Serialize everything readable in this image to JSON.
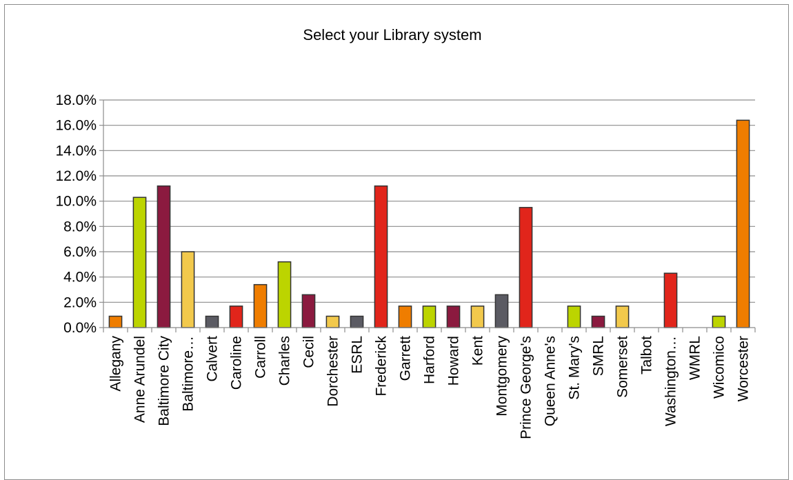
{
  "chart_data": {
    "type": "bar",
    "title": "Select your Library system",
    "xlabel": "",
    "ylabel": "",
    "ylim": [
      0,
      18
    ],
    "y_tick_labels": [
      "0.0%",
      "2.0%",
      "4.0%",
      "6.0%",
      "8.0%",
      "10.0%",
      "12.0%",
      "14.0%",
      "16.0%",
      "18.0%"
    ],
    "grid": true,
    "legend": "none",
    "categories": [
      "Allegany",
      "Anne Arundel",
      "Baltimore City",
      "Baltimore…",
      "Calvert",
      "Caroline",
      "Carroll",
      "Charles",
      "Cecil",
      "Dorchester",
      "ESRL",
      "Frederick",
      "Garrett",
      "Harford",
      "Howard",
      "Kent",
      "Montgomery",
      "Prince George's",
      "Queen Anne's",
      "St. Mary's",
      "SMRL",
      "Somerset",
      "Talbot",
      "Washington…",
      "WMRL",
      "Wicomico",
      "Worcester"
    ],
    "values": [
      0.9,
      10.3,
      11.2,
      6.0,
      0.9,
      1.7,
      3.4,
      5.2,
      2.6,
      0.9,
      0.9,
      11.2,
      1.7,
      1.7,
      1.7,
      1.7,
      2.6,
      9.5,
      0,
      1.7,
      0.9,
      1.7,
      0,
      4.3,
      0,
      0.9,
      16.4
    ],
    "colors": [
      "#ef7d00",
      "#bcd400",
      "#8b1a3f",
      "#f2c94c",
      "#5b5b63",
      "#e1251b",
      "#ef7d00",
      "#bcd400",
      "#8b1a3f",
      "#f2c94c",
      "#5b5b63",
      "#e1251b",
      "#ef7d00",
      "#bcd400",
      "#8b1a3f",
      "#f2c94c",
      "#5b5b63",
      "#e1251b",
      "#ef7d00",
      "#bcd400",
      "#8b1a3f",
      "#f2c94c",
      "#5b5b63",
      "#e1251b",
      "#ef7d00",
      "#bcd400",
      "#ef7d00"
    ]
  }
}
